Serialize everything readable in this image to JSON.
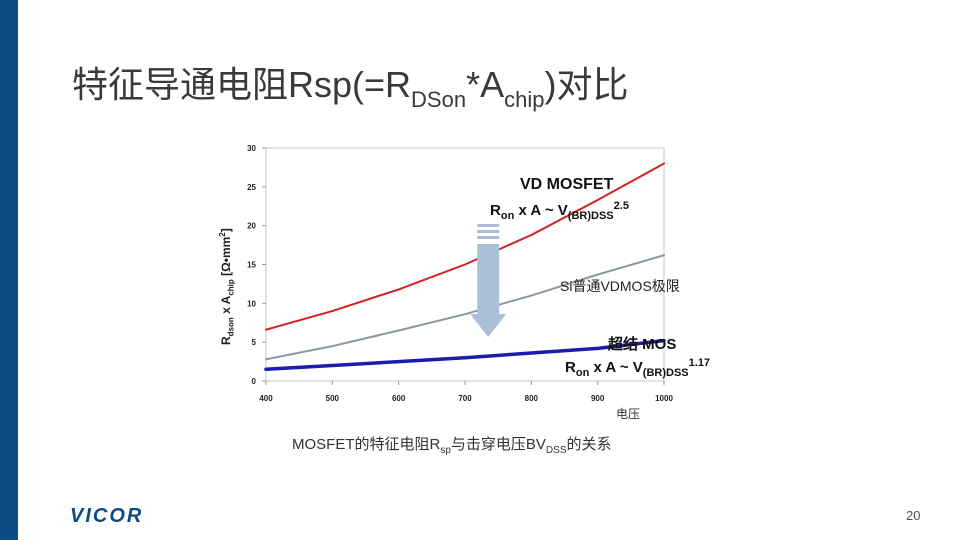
{
  "slide": {
    "title_main": "特征导通电阻Rsp(=R",
    "title_sub1": "DSon",
    "title_mid": "*A",
    "title_sub2": "chip",
    "title_end": ")对比",
    "page_number": "20",
    "logo": "VICOR",
    "caption_pre": "MOSFET的特征电阻R",
    "caption_sub1": "sp",
    "caption_mid": "与击穿电压BV",
    "caption_sub2": "DSS",
    "caption_end": "的关系"
  },
  "chart_data": {
    "type": "line",
    "xlabel": "电压",
    "ylabel_parts": {
      "r": "R",
      "r_sub": "dson",
      "mid": " x A",
      "a_sub": "chip",
      "unit": " [Ω•mm",
      "unit_sup": "2",
      "unit_end": "]"
    },
    "x_ticks": [
      400,
      500,
      600,
      700,
      800,
      900,
      1000
    ],
    "y_ticks": [
      0,
      5,
      10,
      15,
      20,
      25,
      30
    ],
    "xlim": [
      400,
      1000
    ],
    "ylim": [
      0,
      30
    ],
    "grid": false,
    "series": [
      {
        "x": [
          400,
          500,
          600,
          700,
          800,
          900,
          1000
        ],
        "y": [
          6.6,
          9.0,
          11.8,
          15.0,
          18.8,
          23.3,
          28.0
        ],
        "color": "#d42020"
      },
      {
        "x": [
          400,
          500,
          600,
          700,
          800,
          900,
          1000
        ],
        "y": [
          2.8,
          4.5,
          6.5,
          8.6,
          11.0,
          13.7,
          16.2
        ],
        "color": "#8c969e"
      },
      {
        "x": [
          400,
          500,
          600,
          700,
          800,
          900,
          1000
        ],
        "y": [
          1.5,
          2.0,
          2.5,
          3.0,
          3.6,
          4.2,
          5.2
        ],
        "color": "#1b1bb0"
      }
    ],
    "annotations": {
      "vd_title": "VD MOSFET",
      "vd_r": "R",
      "vd_r_sub": "on",
      "vd_mid": " x A  ~ V",
      "vd_v_sub": "(BR)DSS",
      "vd_exp": "2.5",
      "si_label": "Si普通VDMOS极限",
      "sj_title": "超结 MOS",
      "sj_r": "R",
      "sj_r_sub": "on",
      "sj_mid": " x A  ~ V",
      "sj_v_sub": "(BR)DSS",
      "sj_exp": "1.17"
    }
  }
}
